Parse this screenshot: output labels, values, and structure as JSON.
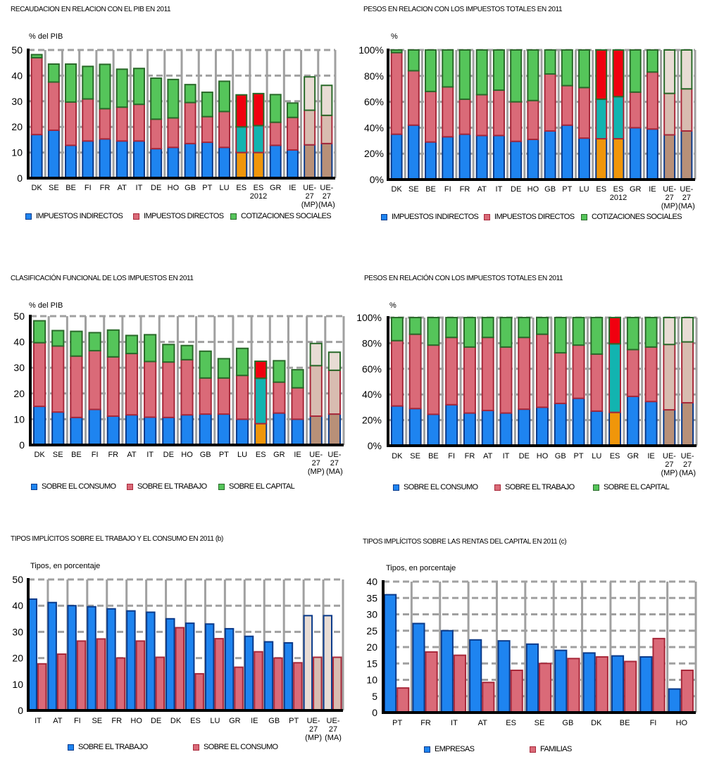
{
  "colors": {
    "blue": "#1e84f0",
    "blue_border": "#0a3a8a",
    "red": "#da6a78",
    "red_border": "#a8283a",
    "green": "#55c55a",
    "green_border": "#2a6a2a",
    "orange": "#f0960a",
    "teal": "#12b4b0",
    "bright_red": "#f0000f",
    "ue_blue": "#b89078",
    "ue_red": "#d8bcb0",
    "ue_green": "#e8dcd4",
    "grid": "#a0a0a0"
  },
  "charts": [
    {
      "id": "c1",
      "title": "RECAUDACION EN RELACION CON EL PIB EN 2011",
      "unit": "% del PIB",
      "legend": [
        "IMPUESTOS INDIRECTOS",
        "IMPUESTOS DIRECTOS",
        "COTIZACIONES SOCIALES"
      ]
    },
    {
      "id": "c2",
      "title": "PESOS EN RELACION CON LOS IMPUESTOS TOTALES EN 2011",
      "unit": "%",
      "legend": [
        "IMPUESTOS INDIRECTOS",
        "IMPUESTOS DIRECTOS",
        "COTIZACIONES SOCIALES"
      ]
    },
    {
      "id": "c3",
      "title": "CLASIFICACIÓN FUNCIONAL DE LOS IMPUESTOS EN 2011",
      "unit": "% del PIB",
      "legend": [
        "SOBRE EL CONSUMO",
        "SOBRE EL TRABAJO",
        "SOBRE EL CAPITAL"
      ]
    },
    {
      "id": "c4",
      "title": "PESOS EN RELACIÓN CON LOS IMPUESTOS TOTALES EN 2011",
      "unit": "%",
      "legend": [
        "SOBRE EL CONSUMO",
        "SOBRE EL TRABAJO",
        "SOBRE EL CAPITAL"
      ]
    },
    {
      "id": "c5",
      "title": "TIPOS IMPLÍCITOS SOBRE EL TRABAJO Y EL CONSUMO EN 2011 (b)",
      "unit": "Tipos, en porcentaje",
      "legend": [
        "SOBRE EL TRABAJO",
        "SOBRE EL CONSUMO"
      ]
    },
    {
      "id": "c6",
      "title": "TIPOS IMPLÍCITOS SOBRE LAS RENTAS DEL CAPITAL EN 2011 (c)",
      "unit": "Tipos, en porcentaje",
      "legend": [
        "EMPRESAS",
        "FAMILIAS"
      ]
    }
  ],
  "chart_data": [
    {
      "type": "bar",
      "stacked": true,
      "title": "RECAUDACION EN RELACION CON EL PIB EN 2011",
      "ylabel": "% del PIB",
      "ylim": [
        0,
        50
      ],
      "yticks": [
        0,
        10,
        20,
        30,
        40,
        50
      ],
      "ytick_labels": [
        "0",
        "10",
        "20",
        "30",
        "40",
        "50"
      ],
      "grid": true,
      "legend_position": "bottom",
      "categories": [
        "DK",
        "SE",
        "BE",
        "FI",
        "FR",
        "AT",
        "IT",
        "DE",
        "HO",
        "GB",
        "PT",
        "LU",
        "ES",
        "ES 2012",
        "GR",
        "IE",
        "UE-27 (MP)",
        "UE-27 (MA)"
      ],
      "special": {
        "12": "es",
        "13": "es",
        "16": "ue",
        "17": "ue"
      },
      "series": [
        {
          "name": "IMPUESTOS INDIRECTOS",
          "values": [
            17,
            18.7,
            12.8,
            14.5,
            15.3,
            14.5,
            14.5,
            11.5,
            12,
            13.5,
            14,
            12,
            10,
            10,
            12.8,
            11,
            13,
            13.5
          ]
        },
        {
          "name": "IMPUESTOS DIRECTOS",
          "values": [
            30,
            18.8,
            16.9,
            16.4,
            11.8,
            13.2,
            14.3,
            11.5,
            11.5,
            16,
            10,
            14,
            10,
            10.5,
            9,
            12.7,
            13.5,
            11
          ]
        },
        {
          "name": "COTIZACIONES SOCIALES",
          "values": [
            1.2,
            7,
            14.8,
            12.7,
            17.3,
            14.8,
            14,
            16,
            15,
            7,
            9.5,
            11.8,
            12.5,
            12.5,
            10.8,
            5.6,
            13,
            11.7
          ]
        }
      ]
    },
    {
      "type": "bar",
      "stacked": true,
      "title": "PESOS EN RELACION CON LOS IMPUESTOS TOTALES EN 2011",
      "ylabel": "%",
      "ylim": [
        0,
        100
      ],
      "yticks": [
        0,
        20,
        40,
        60,
        80,
        100
      ],
      "ytick_labels": [
        "0%",
        "20%",
        "40%",
        "60%",
        "80%",
        "100%"
      ],
      "grid": true,
      "legend_position": "bottom",
      "categories": [
        "DK",
        "SE",
        "BE",
        "FI",
        "FR",
        "AT",
        "IT",
        "DE",
        "HO",
        "GB",
        "PT",
        "LU",
        "ES",
        "ES 2012",
        "GR",
        "IE",
        "UE-27 (MP)",
        "UE-27 (MA)"
      ],
      "special": {
        "12": "es",
        "13": "es",
        "16": "ue",
        "17": "ue"
      },
      "series": [
        {
          "name": "IMPUESTOS INDIRECTOS",
          "values": [
            35,
            42,
            29,
            33,
            35,
            34,
            34,
            29.5,
            31,
            37.5,
            42,
            32,
            31.5,
            31.5,
            40,
            39,
            34.5,
            37.5
          ]
        },
        {
          "name": "IMPUESTOS DIRECTOS",
          "values": [
            63,
            42,
            39,
            38.5,
            27,
            31.5,
            35,
            30.5,
            30,
            44,
            30.5,
            39,
            30.5,
            32.5,
            27.5,
            44,
            32,
            32.5
          ]
        },
        {
          "name": "COTIZACIONES SOCIALES",
          "values": [
            2,
            16,
            32,
            28.5,
            38,
            34.5,
            31,
            40,
            39,
            18.5,
            27.5,
            29,
            38,
            36,
            32.5,
            17,
            33.5,
            30
          ]
        }
      ]
    },
    {
      "type": "bar",
      "stacked": true,
      "title": "CLASIFICACIÓN FUNCIONAL DE LOS IMPUESTOS EN 2011",
      "ylabel": "% del PIB",
      "ylim": [
        0,
        50
      ],
      "yticks": [
        0,
        10,
        20,
        30,
        40,
        50
      ],
      "ytick_labels": [
        "0",
        "10",
        "20",
        "30",
        "40",
        "50"
      ],
      "grid": true,
      "legend_position": "bottom",
      "categories": [
        "DK",
        "SE",
        "BE",
        "FI",
        "FR",
        "AT",
        "IT",
        "DE",
        "HO",
        "GB",
        "PT",
        "LU",
        "ES",
        "GR",
        "IE",
        "UE-27 (MP)",
        "UE-27 (MA)"
      ],
      "special": {
        "12": "es",
        "15": "ue",
        "16": "ue"
      },
      "series": [
        {
          "name": "SOBRE EL CONSUMO",
          "values": [
            15,
            12.8,
            10.7,
            13.8,
            11.2,
            11.7,
            10.8,
            10.7,
            11.7,
            12,
            12,
            10,
            8.3,
            12.4,
            10,
            11.2,
            12
          ]
        },
        {
          "name": "SOBRE EL TRABAJO",
          "values": [
            24.7,
            25.6,
            23.8,
            22.8,
            23,
            23.8,
            21.6,
            21.5,
            21.4,
            14,
            14,
            17,
            17.6,
            12,
            12.2,
            19.6,
            17
          ]
        },
        {
          "name": "SOBRE EL CAPITAL",
          "values": [
            8.5,
            6,
            9.6,
            7,
            10.4,
            7,
            10.4,
            6.8,
            5.5,
            10.4,
            7.5,
            10.5,
            6.6,
            8.3,
            7,
            8.6,
            7
          ]
        }
      ]
    },
    {
      "type": "bar",
      "stacked": true,
      "title": "PESOS EN RELACIÓN CON LOS IMPUESTOS TOTALES EN 2011",
      "ylabel": "%",
      "ylim": [
        0,
        100
      ],
      "yticks": [
        0,
        20,
        40,
        60,
        80,
        100
      ],
      "ytick_labels": [
        "0%",
        "20%",
        "40%",
        "60%",
        "80%",
        "100%"
      ],
      "grid": true,
      "legend_position": "bottom",
      "categories": [
        "DK",
        "SE",
        "BE",
        "FI",
        "FR",
        "AT",
        "IT",
        "DE",
        "HO",
        "GB",
        "PT",
        "LU",
        "ES",
        "GR",
        "IE",
        "UE-27 (MP)",
        "UE-27 (MA)"
      ],
      "special": {
        "12": "es",
        "15": "ue",
        "16": "ue"
      },
      "series": [
        {
          "name": "SOBRE EL CONSUMO",
          "values": [
            31,
            29,
            24.5,
            32,
            25.5,
            27.5,
            25.5,
            28.5,
            30,
            33,
            37,
            27,
            26,
            38.5,
            34.5,
            28,
            33.5
          ]
        },
        {
          "name": "SOBRE EL TRABAJO",
          "values": [
            51,
            58,
            54,
            52.5,
            51.5,
            57,
            51.5,
            56,
            57,
            39.5,
            41.5,
            44.5,
            53.5,
            36.5,
            42.5,
            51,
            47.5
          ]
        },
        {
          "name": "SOBRE EL CAPITAL",
          "values": [
            18,
            13,
            21.5,
            15.5,
            23,
            15.5,
            23,
            15.5,
            13,
            27.5,
            21.5,
            28.5,
            20.5,
            25,
            23,
            21,
            19
          ]
        }
      ]
    },
    {
      "type": "bar",
      "stacked": false,
      "title": "TIPOS IMPLÍCITOS SOBRE EL TRABAJO Y EL CONSUMO EN 2011 (b)",
      "ylabel": "Tipos, en porcentaje",
      "ylim": [
        0,
        50
      ],
      "yticks": [
        0,
        10,
        20,
        30,
        40,
        50
      ],
      "ytick_labels": [
        "0",
        "10",
        "20",
        "30",
        "40",
        "50"
      ],
      "grid": true,
      "legend_position": "bottom",
      "categories": [
        "IT",
        "AT",
        "FI",
        "SE",
        "FR",
        "HO",
        "DE",
        "DK",
        "ES",
        "LU",
        "GR",
        "IE",
        "GB",
        "PT",
        "UE-27 (MP)",
        "UE-27 (MA)"
      ],
      "special": {
        "14": "ue",
        "15": "ue"
      },
      "series": [
        {
          "name": "SOBRE EL TRABAJO",
          "values": [
            42.5,
            41.2,
            40,
            39.6,
            38.8,
            38,
            37.5,
            35,
            33.3,
            33,
            31.2,
            28.3,
            26.2,
            25.8,
            36.2,
            36.2
          ]
        },
        {
          "name": "SOBRE EL CONSUMO",
          "values": [
            17.8,
            21.5,
            26.5,
            27.3,
            20,
            26.5,
            20.3,
            31.6,
            14,
            27.4,
            16.5,
            22.4,
            20,
            18.2,
            20.3,
            20.3
          ]
        }
      ]
    },
    {
      "type": "bar",
      "stacked": false,
      "title": "TIPOS IMPLÍCITOS SOBRE LAS RENTAS DEL CAPITAL EN 2011 (c)",
      "ylabel": "Tipos, en porcentaje",
      "ylim": [
        0,
        40
      ],
      "yticks": [
        0,
        5,
        10,
        15,
        20,
        25,
        30,
        35,
        40
      ],
      "ytick_labels": [
        "0",
        "5",
        "10",
        "15",
        "20",
        "25",
        "30",
        "35",
        "40"
      ],
      "grid": true,
      "legend_position": "bottom",
      "categories": [
        "PT",
        "FR",
        "IT",
        "AT",
        "ES",
        "SE",
        "GB",
        "DK",
        "BE",
        "FI",
        "HO"
      ],
      "special": {},
      "series": [
        {
          "name": "EMPRESAS",
          "values": [
            36,
            27.2,
            25,
            22.2,
            21.9,
            20.9,
            19,
            18.2,
            17.3,
            17,
            7.2
          ]
        },
        {
          "name": "FAMILIAS",
          "values": [
            7.5,
            18.5,
            17.5,
            9.2,
            12.9,
            15,
            16.5,
            17,
            15.6,
            22.6,
            12.9
          ]
        }
      ]
    }
  ]
}
